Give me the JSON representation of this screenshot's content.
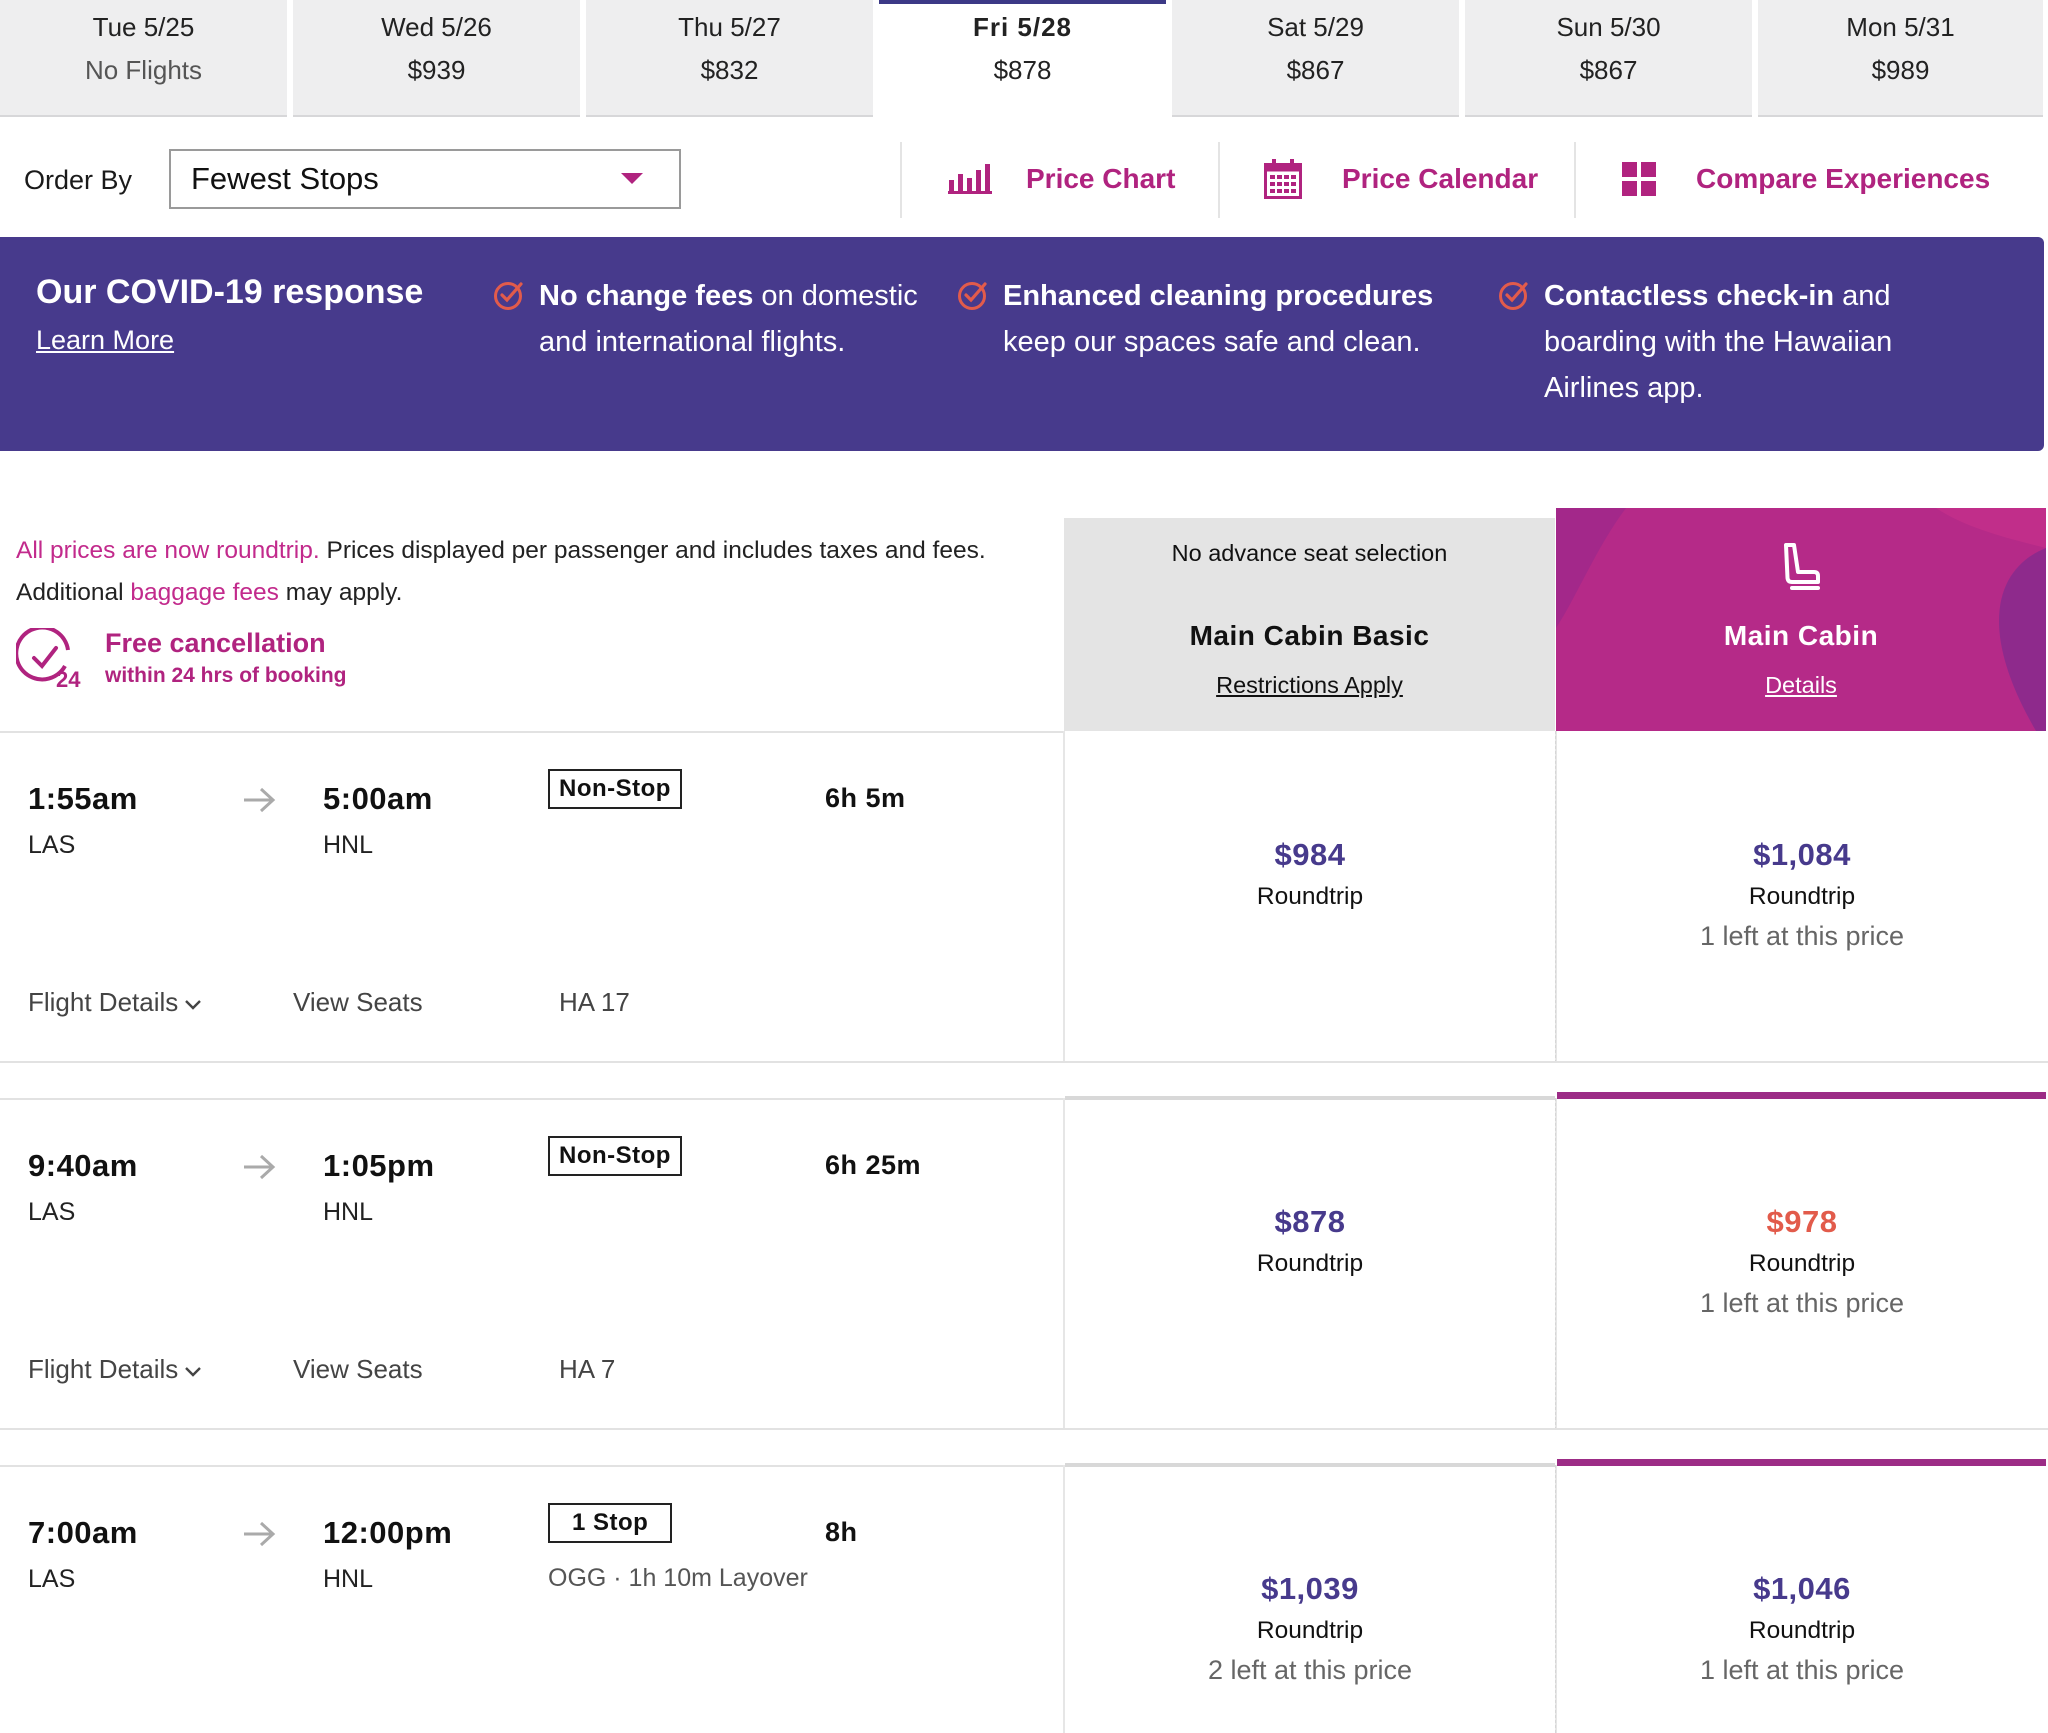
{
  "date_tabs": [
    {
      "day": "Tue 5/25",
      "price": "No Flights"
    },
    {
      "day": "Wed 5/26",
      "price": "$939"
    },
    {
      "day": "Thu 5/27",
      "price": "$832"
    },
    {
      "day": "Fri 5/28",
      "price": "$878"
    },
    {
      "day": "Sat 5/29",
      "price": "$867"
    },
    {
      "day": "Sun 5/30",
      "price": "$867"
    },
    {
      "day": "Mon 5/31",
      "price": "$989"
    }
  ],
  "toolbar": {
    "order_label": "Order By",
    "order_value": "Fewest Stops",
    "price_chart": "Price Chart",
    "price_calendar": "Price Calendar",
    "compare": "Compare Experiences"
  },
  "covid": {
    "title": "Our COVID-19 response",
    "link": "Learn More",
    "item1_bold": "No change fees",
    "item1_rest": " on domestic and international flights.",
    "item2_bold": "Enhanced cleaning procedures",
    "item2_rest": " keep our spaces safe and clean.",
    "item3_bold": "Contactless check-in",
    "item3_rest": " and boarding with the Hawaiian Airlines app."
  },
  "info": {
    "roundtrip_note": "All prices are now roundtrip.",
    "prices_note": " Prices displayed per passenger and includes taxes and fees.",
    "additional": "Additional ",
    "baggage": "baggage fees",
    "may_apply": " may apply.",
    "free_cancel_title": "Free cancellation",
    "free_cancel_sub": "within 24 hrs of booking",
    "badge_24": "24"
  },
  "cabins": {
    "basic": {
      "note": "No advance seat selection",
      "name": "Main Cabin Basic",
      "link": "Restrictions Apply"
    },
    "main": {
      "name": "Main Cabin",
      "link": "Details"
    }
  },
  "flight_actions": {
    "details": "Flight Details",
    "seats": "View Seats"
  },
  "flights": [
    {
      "dep_time": "1:55am",
      "dep_code": "LAS",
      "arr_time": "5:00am",
      "arr_code": "HNL",
      "stops": "Non-Stop",
      "duration": "6h 5m",
      "layover": "",
      "flight_no": "HA 17",
      "basic": {
        "price": "$984",
        "type": "Roundtrip",
        "left": ""
      },
      "main": {
        "price": "$1,084",
        "type": "Roundtrip",
        "left": "1 left at this price"
      }
    },
    {
      "dep_time": "9:40am",
      "dep_code": "LAS",
      "arr_time": "1:05pm",
      "arr_code": "HNL",
      "stops": "Non-Stop",
      "duration": "6h 25m",
      "layover": "",
      "flight_no": "HA 7",
      "basic": {
        "price": "$878",
        "type": "Roundtrip",
        "left": ""
      },
      "main": {
        "price": "$978",
        "type": "Roundtrip",
        "left": "1 left at this price"
      }
    },
    {
      "dep_time": "7:00am",
      "dep_code": "LAS",
      "arr_time": "12:00pm",
      "arr_code": "HNL",
      "stops": "1 Stop",
      "duration": "8h",
      "layover": "OGG · 1h 10m Layover",
      "flight_no": "",
      "basic": {
        "price": "$1,039",
        "type": "Roundtrip",
        "left": "2 left at this price"
      },
      "main": {
        "price": "$1,046",
        "type": "Roundtrip",
        "left": "1 left at this price"
      }
    }
  ],
  "colors": {
    "brand_purple": "#473a8c",
    "brand_magenta": "#b0237f",
    "sale_price": "#e25b4b"
  }
}
